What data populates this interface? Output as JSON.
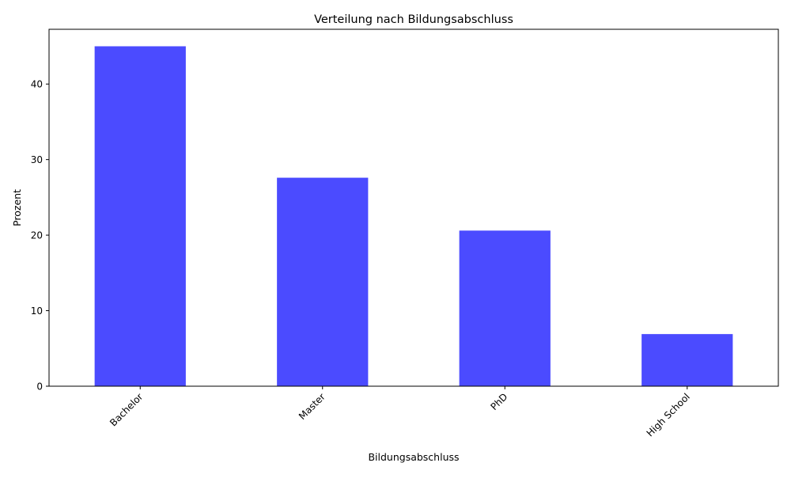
{
  "chart_data": {
    "type": "bar",
    "title": "Verteilung nach Bildungsabschluss",
    "xlabel": "Bildungsabschluss",
    "ylabel": "Prozent",
    "categories": [
      "Bachelor",
      "Master",
      "PhD",
      "High School"
    ],
    "values": [
      45.0,
      27.6,
      20.6,
      6.9
    ],
    "ylim": [
      0,
      47.25
    ],
    "yticks": [
      0,
      10,
      20,
      30,
      40
    ],
    "bar_color": "#4b4bff",
    "grid": false,
    "legend": "none"
  }
}
